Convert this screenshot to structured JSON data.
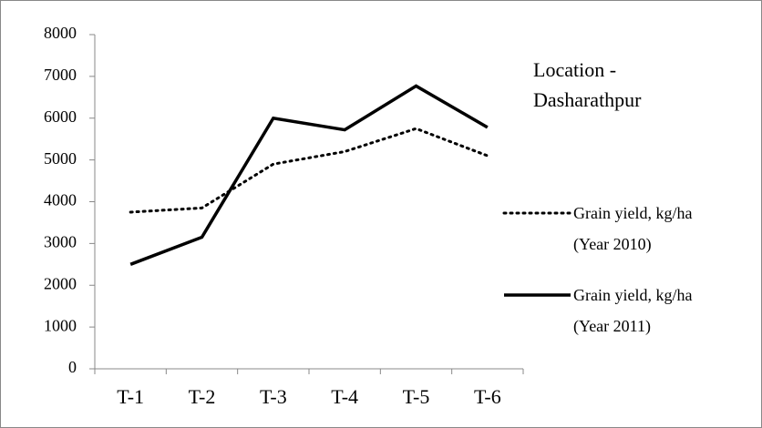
{
  "chart_data": {
    "type": "line",
    "annotation": "Location - Dasharathpur",
    "categories": [
      "T-1",
      "T-2",
      "T-3",
      "T-4",
      "T-5",
      "T-6"
    ],
    "series": [
      {
        "name": "Grain yield, kg/ha (Year 2010)",
        "color": "#000000",
        "line_style": "dotted",
        "values": [
          3750,
          3850,
          4900,
          5200,
          5750,
          5100
        ]
      },
      {
        "name": "Grain yield, kg/ha (Year 2011)",
        "color": "#000000",
        "line_style": "solid",
        "values": [
          2500,
          3150,
          6000,
          5720,
          6770,
          5780
        ]
      }
    ],
    "ylim": [
      0,
      8000
    ],
    "yticks": [
      0,
      1000,
      2000,
      3000,
      4000,
      5000,
      6000,
      7000,
      8000
    ],
    "grid": false,
    "legend": "right"
  }
}
